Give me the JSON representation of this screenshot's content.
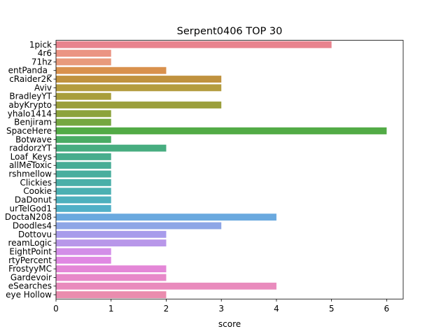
{
  "chart_data": {
    "type": "bar",
    "orientation": "horizontal",
    "title": "Serpent0406 TOP 30",
    "xlabel": "score",
    "ylabel": "",
    "xlim": [
      0,
      6.3
    ],
    "xticks": [
      0,
      1,
      2,
      3,
      4,
      5,
      6
    ],
    "grid": false,
    "categories": [
      "1pick",
      "4r6",
      "71hz",
      "entPanda_",
      "cRaider2K",
      "Aviv",
      "BradleyYT",
      "abyKrypto",
      "yhalo1414",
      "Benjiram",
      "SpaceHere",
      "Botwave",
      "raddorzYT",
      "Loaf_Keys",
      "allMeToxic",
      "rshmellow",
      "Clickies",
      "Cookie",
      "DaDonut",
      "urTelGod1",
      "DoctaN208",
      "Doodles4",
      "Dottovu",
      "reamLogic",
      "EightPoint",
      "rtyPercent",
      "FrostyyMC",
      "Gardevoir",
      "eSearches",
      "eye Hollow"
    ],
    "values": [
      5,
      1,
      1,
      2,
      3,
      3,
      1,
      3,
      1,
      1,
      6,
      1,
      2,
      1,
      1,
      1,
      1,
      1,
      1,
      1,
      4,
      3,
      2,
      2,
      1,
      1,
      2,
      2,
      4,
      2
    ],
    "colors": [
      "#e8838e",
      "#eb9483",
      "#e89a7c",
      "#d9914d",
      "#c0923f",
      "#b49c3f",
      "#a89e3c",
      "#9b9f3c",
      "#8ca33c",
      "#75a740",
      "#52ab46",
      "#4aac64",
      "#47ad80",
      "#48ad8d",
      "#48ad96",
      "#49ae9e",
      "#4aafa8",
      "#4bb0b2",
      "#4eb0bd",
      "#51b0c7",
      "#6aa9df",
      "#8ea6e6",
      "#a89ceb",
      "#b897e9",
      "#d38ee8",
      "#e088e3",
      "#e487d7",
      "#e889c9",
      "#e98bbd",
      "#ea8cae"
    ]
  }
}
